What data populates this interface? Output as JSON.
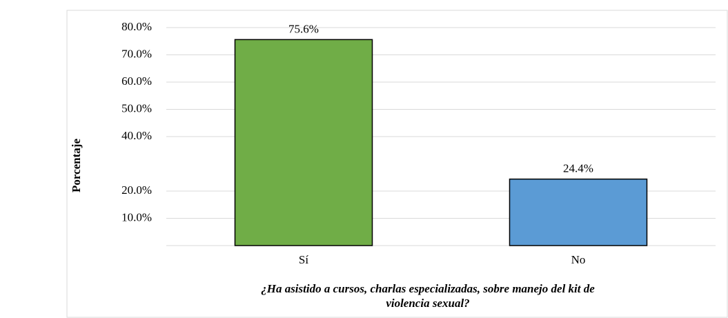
{
  "chart_data": {
    "type": "bar",
    "ylabel": "Porcentaje",
    "xlabel": [
      "¿Ha asistido a cursos, charlas especializadas, sobre manejo del kit de",
      "violencia sexual?"
    ],
    "categories": [
      "Sí",
      "No"
    ],
    "values": [
      75.6,
      24.4
    ],
    "value_labels": [
      "75.6%",
      "24.4%"
    ],
    "colors": [
      "#70ad47",
      "#5b9bd5"
    ],
    "ylim": [
      0,
      80
    ],
    "yticks": [
      {
        "value": 10,
        "label": "10.0%"
      },
      {
        "value": 20,
        "label": "20.0%"
      },
      {
        "value": 40,
        "label": "40.0%"
      },
      {
        "value": 50,
        "label": "50.0%"
      },
      {
        "value": 60,
        "label": "60.0%"
      },
      {
        "value": 70,
        "label": "70.0%"
      },
      {
        "value": 80,
        "label": "80.0%"
      }
    ],
    "grid": true
  }
}
